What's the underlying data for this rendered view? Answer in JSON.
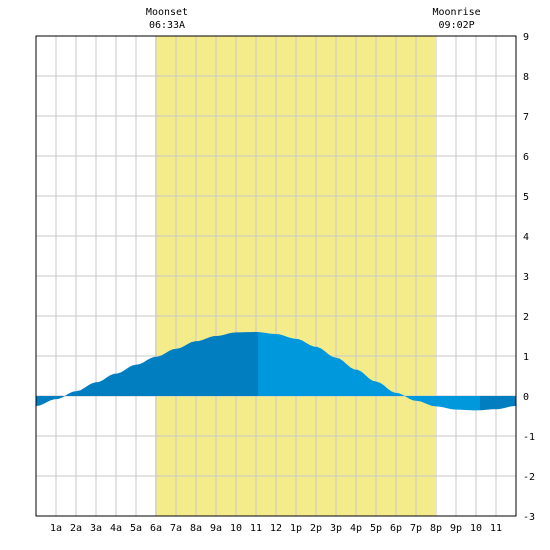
{
  "chart_data": {
    "type": "area",
    "x_tick_labels": [
      "1a",
      "2a",
      "3a",
      "4a",
      "5a",
      "6a",
      "7a",
      "8a",
      "9a",
      "10",
      "11",
      "12",
      "1p",
      "2p",
      "3p",
      "4p",
      "5p",
      "6p",
      "7p",
      "8p",
      "9p",
      "10",
      "11"
    ],
    "xlim": [
      0,
      24
    ],
    "ylim": [
      -3,
      9
    ],
    "y_ticks": [
      -3,
      -2,
      -1,
      0,
      1,
      2,
      3,
      4,
      5,
      6,
      7,
      8,
      9
    ],
    "grid": true,
    "daylight_band": {
      "start_hour": 5.95,
      "end_hour": 19.95
    },
    "moon_events": [
      {
        "label": "Moonset",
        "time": "06:33A",
        "hour": 6.55
      },
      {
        "label": "Moonrise",
        "time": "09:02P",
        "hour": 21.03
      }
    ],
    "tide_curve": {
      "x": [
        0,
        1,
        2,
        3,
        4,
        5,
        6,
        7,
        8,
        9,
        10,
        11,
        12,
        13,
        14,
        15,
        16,
        17,
        18,
        19,
        20,
        21,
        22,
        23,
        24
      ],
      "y": [
        -0.25,
        -0.08,
        0.12,
        0.34,
        0.56,
        0.78,
        0.98,
        1.18,
        1.37,
        1.5,
        1.59,
        1.6,
        1.55,
        1.43,
        1.23,
        0.96,
        0.66,
        0.36,
        0.08,
        -0.12,
        -0.26,
        -0.34,
        -0.36,
        -0.33,
        -0.25
      ]
    },
    "extremes": [
      {
        "type": "high",
        "hour": 11.1,
        "value": 1.6
      },
      {
        "type": "low",
        "hour": 22.2,
        "value": -0.36
      }
    ],
    "colors": {
      "daylight": "#f4ec8a",
      "tide_dark": "#007ec0",
      "tide_light": "#0098dc",
      "grid": "#c8c8c8",
      "border": "#000000"
    }
  }
}
